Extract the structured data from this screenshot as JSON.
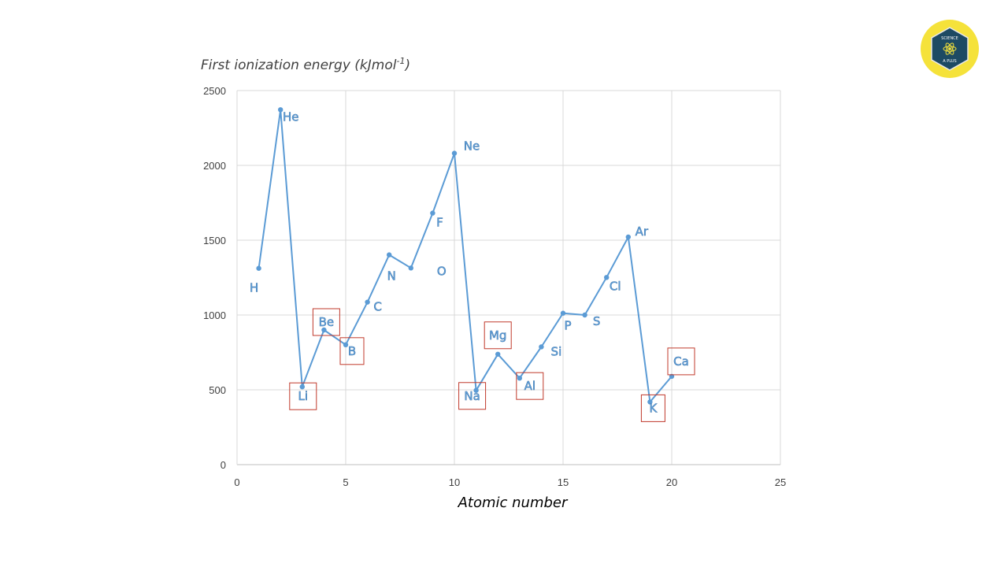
{
  "logo": {
    "top_text": "SCIENCE",
    "bottom_text": "A PLUS",
    "ring_color": "#f5e23a",
    "disc_color": "#1d4a63"
  },
  "chart_data": {
    "type": "line",
    "title": "",
    "ylabel_main": "First ionization energy (kJmol",
    "ylabel_sup": "-1",
    "ylabel_close": ")",
    "xlabel": "Atomic number",
    "xlim": [
      0,
      25
    ],
    "ylim": [
      0,
      2500
    ],
    "xticks": [
      0,
      5,
      10,
      15,
      20,
      25
    ],
    "yticks": [
      0,
      500,
      1000,
      1500,
      2000,
      2500
    ],
    "grid": true,
    "line_color": "#5b9bd5",
    "highlight_color": "#c0392b",
    "series": [
      {
        "x": [
          1,
          2,
          3,
          4,
          5,
          6,
          7,
          8,
          9,
          10,
          11,
          12,
          13,
          14,
          15,
          16,
          17,
          18,
          19,
          20
        ],
        "y": [
          1312,
          2372,
          520,
          900,
          801,
          1086,
          1402,
          1314,
          1681,
          2081,
          496,
          738,
          578,
          787,
          1012,
          1000,
          1251,
          1521,
          419,
          590
        ],
        "point_labels": [
          "H",
          "He",
          "Li",
          "Be",
          "B",
          "C",
          "N",
          "O",
          "F",
          "Ne",
          "Na",
          "Mg",
          "Al",
          "Si",
          "P",
          "S",
          "Cl",
          "Ar",
          "K",
          "Ca"
        ],
        "boxed": [
          false,
          false,
          true,
          true,
          true,
          false,
          false,
          false,
          false,
          false,
          true,
          true,
          true,
          false,
          false,
          false,
          false,
          false,
          true,
          true
        ]
      }
    ]
  }
}
